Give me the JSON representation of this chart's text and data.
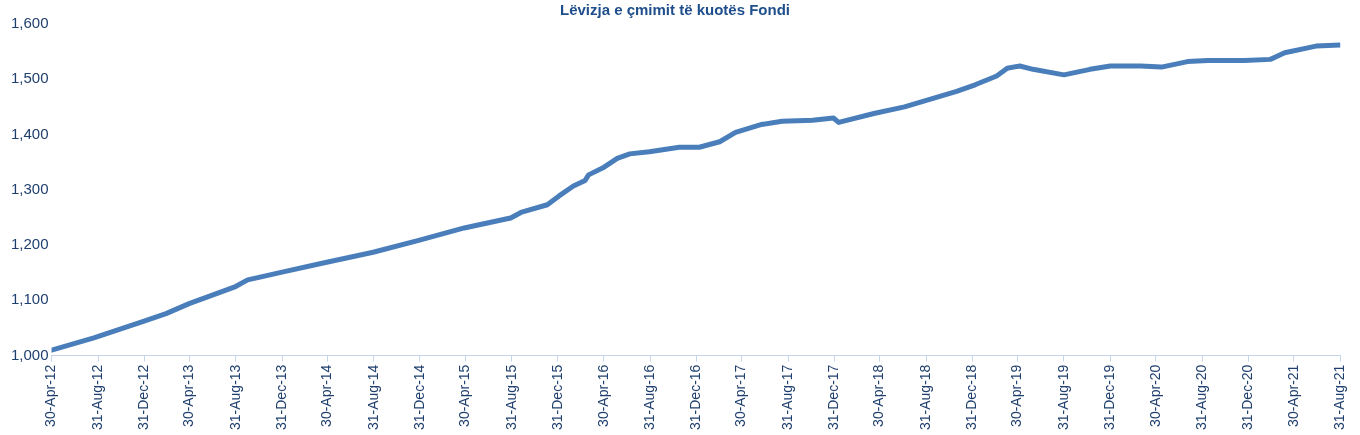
{
  "chart_data": {
    "type": "line",
    "title": "Lëvizja e çmimit të kuotës Fondi",
    "x": [
      "2012-04-30",
      "2012-08-20",
      "2012-12-29",
      "2013-02-27",
      "2013-04-29",
      "2013-08-30",
      "2013-10-01",
      "2013-12-31",
      "2014-04-28",
      "2014-08-29",
      "2014-12-30",
      "2015-04-27",
      "2015-08-28",
      "2015-09-24",
      "2015-12-03",
      "2016-01-03",
      "2016-02-10",
      "2016-03-12",
      "2016-03-21",
      "2016-05-01",
      "2016-06-05",
      "2016-07-08",
      "2016-08-29",
      "2016-11-16",
      "2017-01-08",
      "2017-03-03",
      "2017-04-14",
      "2017-06-20",
      "2017-08-15",
      "2017-11-04",
      "2017-12-29",
      "2018-01-12",
      "2018-04-15",
      "2018-07-05",
      "2018-09-12",
      "2018-11-20",
      "2019-01-08",
      "2019-03-06",
      "2019-04-03",
      "2019-05-06",
      "2019-06-10",
      "2019-08-31",
      "2019-11-08",
      "2020-01-01",
      "2020-03-21",
      "2020-05-15",
      "2020-07-23",
      "2020-09-15",
      "2020-12-20",
      "2021-02-27",
      "2021-04-06",
      "2021-06-28",
      "2021-08-31"
    ],
    "series": [
      {
        "color": "#4a7ebb",
        "values": [
          1010,
          1032,
          1062,
          1076,
          1094,
          1125,
          1137,
          1151,
          1169,
          1187,
          1209,
          1231,
          1249,
          1259,
          1273,
          1289,
          1307,
          1317,
          1327,
          1341,
          1357,
          1365,
          1369,
          1377,
          1377,
          1387,
          1404,
          1418,
          1424,
          1426,
          1430,
          1422,
          1438,
          1450,
          1464,
          1478,
          1490,
          1506,
          1520,
          1524,
          1518,
          1508,
          1518,
          1524,
          1524,
          1522,
          1532,
          1534,
          1534,
          1536,
          1548,
          1560,
          1562
        ]
      }
    ],
    "xlim": [
      "2012-04-30",
      "2021-08-31"
    ],
    "xticks": [
      {
        "value": "2012-04-30",
        "label": "30-Apr-12"
      },
      {
        "value": "2012-08-31",
        "label": "31-Aug-12"
      },
      {
        "value": "2012-12-31",
        "label": "31-Dec-12"
      },
      {
        "value": "2013-04-30",
        "label": "30-Apr-13"
      },
      {
        "value": "2013-08-31",
        "label": "31-Aug-13"
      },
      {
        "value": "2013-12-31",
        "label": "31-Dec-13"
      },
      {
        "value": "2014-04-30",
        "label": "30-Apr-14"
      },
      {
        "value": "2014-08-31",
        "label": "31-Aug-14"
      },
      {
        "value": "2014-12-31",
        "label": "31-Dec-14"
      },
      {
        "value": "2015-04-30",
        "label": "30-Apr-15"
      },
      {
        "value": "2015-08-31",
        "label": "31-Aug-15"
      },
      {
        "value": "2015-12-31",
        "label": "31-Dec-15"
      },
      {
        "value": "2016-04-30",
        "label": "30-Apr-16"
      },
      {
        "value": "2016-08-31",
        "label": "31-Aug-16"
      },
      {
        "value": "2016-12-31",
        "label": "31-Dec-16"
      },
      {
        "value": "2017-04-30",
        "label": "30-Apr-17"
      },
      {
        "value": "2017-08-31",
        "label": "31-Aug-17"
      },
      {
        "value": "2017-12-31",
        "label": "31-Dec-17"
      },
      {
        "value": "2018-04-30",
        "label": "30-Apr-18"
      },
      {
        "value": "2018-08-31",
        "label": "31-Aug-18"
      },
      {
        "value": "2018-12-31",
        "label": "31-Dec-18"
      },
      {
        "value": "2019-04-30",
        "label": "30-Apr-19"
      },
      {
        "value": "2019-08-31",
        "label": "31-Aug-19"
      },
      {
        "value": "2019-12-31",
        "label": "31-Dec-19"
      },
      {
        "value": "2020-04-30",
        "label": "30-Apr-20"
      },
      {
        "value": "2020-08-31",
        "label": "31-Aug-20"
      },
      {
        "value": "2020-12-31",
        "label": "31-Dec-20"
      },
      {
        "value": "2021-04-30",
        "label": "30-Apr-21"
      },
      {
        "value": "2021-08-31",
        "label": "31-Aug-21"
      }
    ],
    "ylim": [
      1000,
      1600
    ],
    "yticks": [
      {
        "value": 1000,
        "label": "1,000"
      },
      {
        "value": 1100,
        "label": "1,100"
      },
      {
        "value": 1200,
        "label": "1,200"
      },
      {
        "value": 1300,
        "label": "1,300"
      },
      {
        "value": 1400,
        "label": "1,400"
      },
      {
        "value": 1500,
        "label": "1,500"
      },
      {
        "value": 1600,
        "label": "1,600"
      }
    ],
    "grid": false,
    "legend": false,
    "marker": "none",
    "line_style": "solid"
  }
}
